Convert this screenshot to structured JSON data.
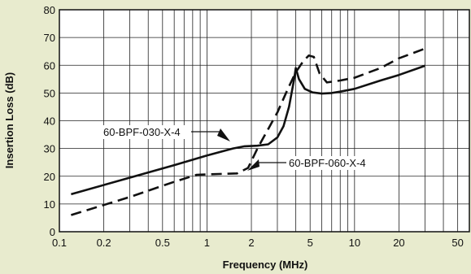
{
  "chart_data": {
    "type": "line",
    "title": "",
    "xlabel": "Frequency (MHz)",
    "ylabel": "Insertion Loss (dB)",
    "xscale": "log",
    "xlim": [
      0.1,
      60
    ],
    "ylim": [
      0,
      80
    ],
    "grid": true,
    "x_ticks": [
      {
        "value": 0.1,
        "label": "0.1"
      },
      {
        "value": 0.2,
        "label": "0.2"
      },
      {
        "value": 0.5,
        "label": "0.5"
      },
      {
        "value": 1,
        "label": "1"
      },
      {
        "value": 2,
        "label": "2"
      },
      {
        "value": 5,
        "label": "5"
      },
      {
        "value": 10,
        "label": "10"
      },
      {
        "value": 20,
        "label": "20"
      },
      {
        "value": 50,
        "label": "50"
      }
    ],
    "y_ticks": [
      0,
      10,
      20,
      30,
      40,
      50,
      60,
      70,
      80
    ],
    "series": [
      {
        "name": "60-BPF-030-X-4",
        "style": "solid",
        "color": "#111111",
        "x": [
          0.12,
          0.3,
          0.6,
          1.0,
          1.5,
          1.8,
          2.2,
          2.6,
          3.0,
          3.3,
          3.6,
          3.9,
          4.0,
          4.2,
          4.6,
          5.2,
          6.0,
          7.0,
          8.0,
          10,
          15,
          20,
          30
        ],
        "y": [
          13.5,
          19.5,
          24.0,
          27.5,
          30.0,
          30.8,
          31.0,
          31.5,
          34.0,
          38.0,
          45.0,
          55.0,
          59.0,
          55.0,
          51.5,
          50.2,
          49.8,
          50.0,
          50.5,
          51.5,
          54.5,
          56.5,
          59.8
        ]
      },
      {
        "name": "60-BPF-060-X-4",
        "style": "dashed",
        "color": "#111111",
        "x": [
          0.12,
          0.3,
          0.6,
          0.85,
          1.2,
          1.6,
          1.9,
          2.2,
          2.6,
          3.0,
          3.5,
          4.0,
          4.5,
          4.9,
          5.3,
          5.8,
          6.5,
          8.0,
          10,
          15,
          20,
          30
        ],
        "y": [
          6.0,
          12.5,
          18.0,
          20.5,
          20.8,
          21.0,
          23.0,
          30.0,
          37.0,
          43.0,
          51.0,
          57.5,
          61.5,
          63.5,
          63.0,
          57.0,
          53.8,
          54.5,
          55.5,
          59.0,
          62.5,
          66.0
        ]
      }
    ],
    "annotations": [
      {
        "text": "60-BPF-030-X-4",
        "x": 1.45,
        "y": 30.5
      },
      {
        "text": "60-BPF-060-X-4",
        "x": 2.4,
        "y": 24.5
      }
    ]
  }
}
